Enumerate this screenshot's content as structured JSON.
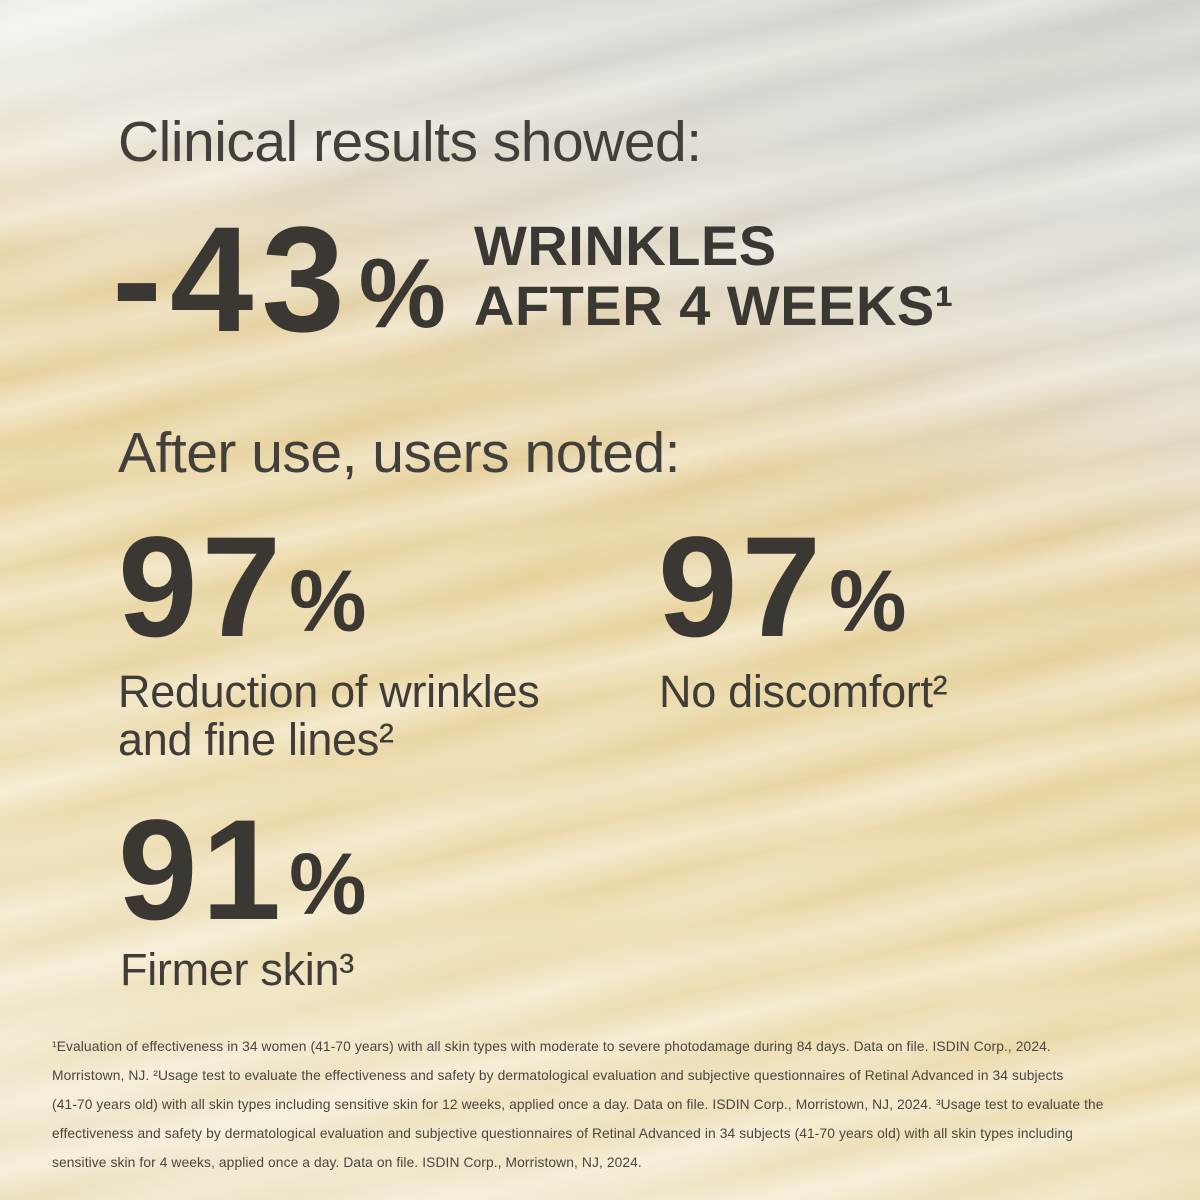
{
  "colors": {
    "text_dark": "#3b3834",
    "text_heading": "#43403b",
    "text_footnote": "#4b463f",
    "bg_gray_top": "#d9d6d2",
    "bg_gold": "#e7d29b",
    "bg_cream_streak": "#f2ecd8"
  },
  "headings": {
    "clinical": "Clinical results showed:",
    "after_use": "After use, users noted:"
  },
  "hero_stat": {
    "value": "-43",
    "unit": "%",
    "label_lines": [
      "WRINKLES",
      "AFTER 4 WEEKS¹"
    ]
  },
  "user_stats": [
    {
      "value": "97",
      "unit": "%",
      "label_lines": [
        "Reduction of wrinkles",
        "and fine lines²"
      ]
    },
    {
      "value": "97",
      "unit": "%",
      "label_lines": [
        "No discomfort²"
      ]
    },
    {
      "value": "91",
      "unit": "%",
      "label_lines": [
        "Firmer skin³"
      ]
    }
  ],
  "footnotes": {
    "lines": [
      "¹Evaluation of effectiveness in 34 women (41-70 years) with all skin types with moderate to severe photodamage during 84 days. Data on file. ISDIN Corp., 2024.",
      "Morristown, NJ. ²Usage test to evaluate the effectiveness and safety by dermatological evaluation and subjective questionnaires of Retinal Advanced in 34 subjects",
      "(41-70 years old) with all skin types including sensitive skin for 12 weeks, applied once a day. Data on file. ISDIN Corp., Morristown, NJ, 2024. ³Usage test to evaluate the",
      "effectiveness and safety by dermatological evaluation and subjective questionnaires of Retinal Advanced in 34 subjects (41-70 years old) with all skin types including",
      "sensitive skin for 4 weeks, applied once a day. Data on file. ISDIN Corp., Morristown, NJ, 2024."
    ]
  }
}
